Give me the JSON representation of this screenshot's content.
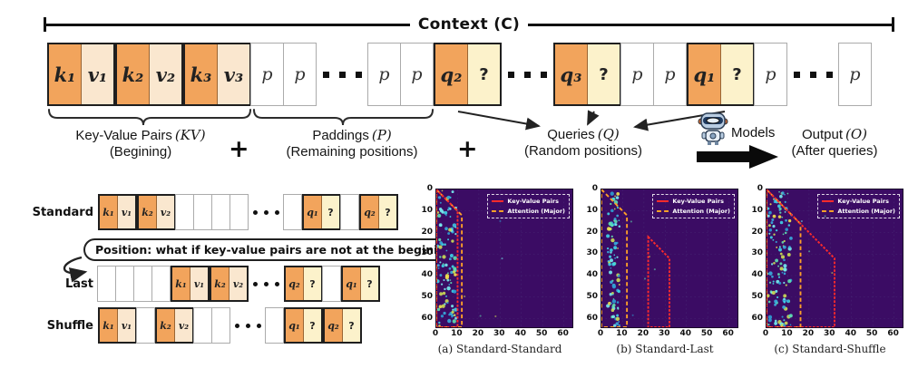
{
  "context": {
    "label": "Context (C)"
  },
  "top_row": {
    "cells": [
      {
        "t": "kv",
        "l1": "k₁",
        "l2": "v₁"
      },
      {
        "t": "kv",
        "l1": "k₂",
        "l2": "v₂"
      },
      {
        "t": "kv",
        "l1": "k₃",
        "l2": "v₃"
      },
      {
        "t": "p",
        "label": "p"
      },
      {
        "t": "p",
        "label": "p"
      },
      {
        "t": "dots"
      },
      {
        "t": "p",
        "label": "p"
      },
      {
        "t": "p",
        "label": "p"
      },
      {
        "t": "q",
        "l1": "q₂",
        "l2": "?"
      },
      {
        "t": "dots"
      },
      {
        "t": "q",
        "l1": "q₃",
        "l2": "?"
      },
      {
        "t": "p",
        "label": "p"
      },
      {
        "t": "p",
        "label": "p"
      },
      {
        "t": "q",
        "l1": "q₁",
        "l2": "?"
      },
      {
        "t": "p",
        "label": "p"
      },
      {
        "t": "dots"
      },
      {
        "t": "p",
        "label": "p"
      }
    ]
  },
  "flow": {
    "plus": "+",
    "kv": {
      "title": "Key-Value Pairs",
      "math": "(KV)",
      "subtitle": "(Begining)"
    },
    "paddings": {
      "title": "Paddings",
      "math": "(P)",
      "subtitle": "(Remaining positions)"
    },
    "queries": {
      "title": "Queries",
      "math": "(Q)",
      "subtitle": "(Random positions)"
    },
    "models_label": "Models",
    "output": {
      "title": "Output",
      "math": "(O)",
      "subtitle": "(After queries)"
    }
  },
  "variants": {
    "bubble_text": "Position: what if key-value pairs are not at the begining?",
    "rows": [
      {
        "label": "Standard",
        "cells": [
          {
            "t": "kv",
            "l1": "k₁",
            "l2": "v₁"
          },
          {
            "t": "kv",
            "l1": "k₂",
            "l2": "v₂"
          },
          {
            "t": "e"
          },
          {
            "t": "e"
          },
          {
            "t": "e"
          },
          {
            "t": "e"
          },
          {
            "t": "dots"
          },
          {
            "t": "e"
          },
          {
            "t": "q",
            "l1": "q₁",
            "l2": "?"
          },
          {
            "t": "e"
          },
          {
            "t": "q",
            "l1": "q₂",
            "l2": "?"
          }
        ]
      },
      {
        "label": "Last",
        "cells": [
          {
            "t": "e"
          },
          {
            "t": "e"
          },
          {
            "t": "e"
          },
          {
            "t": "e"
          },
          {
            "t": "kv",
            "l1": "k₁",
            "l2": "v₁"
          },
          {
            "t": "kv",
            "l1": "k₂",
            "l2": "v₂"
          },
          {
            "t": "dots"
          },
          {
            "t": "q",
            "l1": "q₂",
            "l2": "?"
          },
          {
            "t": "e"
          },
          {
            "t": "q",
            "l1": "q₁",
            "l2": "?"
          }
        ]
      },
      {
        "label": "Shuffle",
        "cells": [
          {
            "t": "kv",
            "l1": "k₁",
            "l2": "v₁"
          },
          {
            "t": "e"
          },
          {
            "t": "kv",
            "l1": "k₂",
            "l2": "v₂"
          },
          {
            "t": "e"
          },
          {
            "t": "e"
          },
          {
            "t": "dots"
          },
          {
            "t": "e"
          },
          {
            "t": "q",
            "l1": "q₁",
            "l2": "?"
          },
          {
            "t": "q",
            "l1": "q₂",
            "l2": "?"
          }
        ]
      }
    ]
  },
  "chart_data": [
    {
      "type": "heatmap",
      "caption": "(a) Standard-Standard",
      "x_range": [
        0,
        64
      ],
      "y_range": [
        0,
        64
      ],
      "x_ticks": [
        0,
        10,
        20,
        30,
        40,
        50,
        60
      ],
      "y_ticks": [
        0,
        10,
        20,
        30,
        40,
        50,
        60
      ],
      "legend": [
        {
          "label": "Key-Value Pairs",
          "color": "#FF2B2B",
          "style": "solid"
        },
        {
          "label": "Attention (Major)",
          "color": "#FFA028",
          "style": "dashed"
        }
      ],
      "kv_outline": [
        [
          0,
          0
        ],
        [
          10,
          10
        ],
        [
          10,
          64
        ],
        [
          0,
          64
        ]
      ],
      "attention_outline": [
        [
          0,
          0
        ],
        [
          12,
          12
        ],
        [
          12,
          64
        ],
        [
          0,
          64
        ]
      ],
      "speckle_region": {
        "x": [
          0.5,
          9.5
        ],
        "count": 100
      },
      "bg": "#3B0C64"
    },
    {
      "type": "heatmap",
      "caption": "(b) Standard-Last",
      "x_range": [
        0,
        64
      ],
      "y_range": [
        0,
        64
      ],
      "x_ticks": [
        0,
        10,
        20,
        30,
        40,
        50,
        60
      ],
      "y_ticks": [
        0,
        10,
        20,
        30,
        40,
        50,
        60
      ],
      "legend": [
        {
          "label": "Key-Value Pairs",
          "color": "#FF2B2B",
          "style": "solid"
        },
        {
          "label": "Attention (Major)",
          "color": "#FFA028",
          "style": "dashed"
        }
      ],
      "kv_outline": [
        [
          22,
          22
        ],
        [
          32,
          32
        ],
        [
          32,
          64
        ],
        [
          22,
          64
        ]
      ],
      "attention_outline": [
        [
          0,
          0
        ],
        [
          12,
          12
        ],
        [
          12,
          64
        ],
        [
          0,
          64
        ]
      ],
      "speckle_region": {
        "x": [
          3,
          8.5
        ],
        "count": 85
      },
      "bg": "#3B0C64"
    },
    {
      "type": "heatmap",
      "caption": "(c) Standard-Shuffle",
      "x_range": [
        0,
        64
      ],
      "y_range": [
        0,
        64
      ],
      "x_ticks": [
        0,
        10,
        20,
        30,
        40,
        50,
        60
      ],
      "y_ticks": [
        0,
        10,
        20,
        30,
        40,
        50,
        60
      ],
      "legend": [
        {
          "label": "Key-Value Pairs",
          "color": "#FF2B2B",
          "style": "solid"
        },
        {
          "label": "Attention (Major)",
          "color": "#FFA028",
          "style": "dashed"
        }
      ],
      "kv_outline": [
        [
          0,
          0
        ],
        [
          32,
          32
        ],
        [
          32,
          64
        ],
        [
          0,
          64
        ]
      ],
      "attention_outline": [
        [
          0,
          0
        ],
        [
          16,
          16
        ],
        [
          16,
          64
        ],
        [
          0,
          64
        ]
      ],
      "speckle_region": {
        "x": [
          0.5,
          12
        ],
        "count": 120
      },
      "bg": "#3B0C64"
    }
  ],
  "colors": {
    "key_orange": "#F2A45C",
    "value_cream": "#FAE7CF",
    "answer_cream": "#FCF2CB",
    "heatmap_bg": "#3B0C64",
    "kv_line_red": "#FF2B2B",
    "attention_line_orange": "#FFA028"
  }
}
